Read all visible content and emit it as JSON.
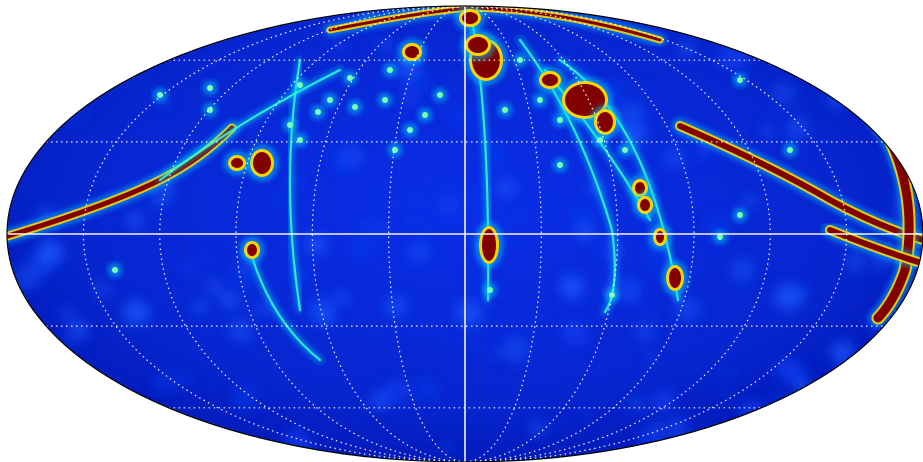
{
  "map": {
    "projection": "mollweide",
    "graticule": {
      "longitude_step_deg": 30,
      "latitude_step_deg": 30,
      "style": "dotted",
      "color": "#ffffff",
      "equator_solid": true,
      "central_meridian_solid": true
    },
    "colormap": "jet",
    "colors": {
      "background_low": "#0000a6",
      "background_mid": "#0b2ee0",
      "peak": "#800000",
      "outline": "#000000",
      "page": "#ffffff"
    },
    "labels": []
  }
}
